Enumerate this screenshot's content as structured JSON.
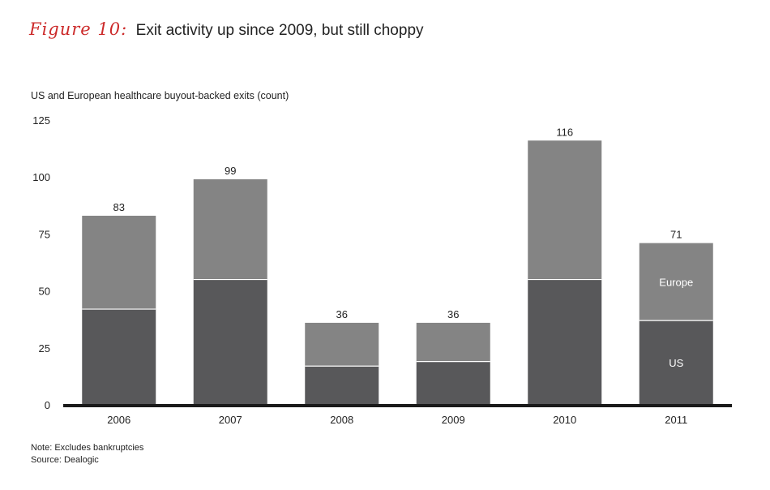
{
  "figure": {
    "label": "Figure 10:",
    "title": "Exit activity up since 2009, but still choppy",
    "label_color": "#cc2a2a"
  },
  "chart_data": {
    "type": "bar",
    "stacked": true,
    "title": "Exit activity up since 2009, but still choppy",
    "ylabel": "US and European healthcare buyout-backed exits (count)",
    "xlabel": "",
    "categories": [
      "2006",
      "2007",
      "2008",
      "2009",
      "2010",
      "2011"
    ],
    "series": [
      {
        "name": "US",
        "values": [
          42,
          55,
          17,
          19,
          55,
          37
        ],
        "color": "#58585a"
      },
      {
        "name": "Europe",
        "values": [
          41,
          44,
          19,
          17,
          61,
          34
        ],
        "color": "#848484"
      }
    ],
    "totals": [
      "83",
      "99",
      "36",
      "36",
      "116",
      "71"
    ],
    "ylim": [
      0,
      125
    ],
    "yticks": [
      "0",
      "25",
      "50",
      "75",
      "100",
      "125"
    ],
    "legend": "inline on last bar",
    "grid": false
  },
  "notes": {
    "note": "Note: Excludes bankruptcies",
    "source": "Source: Dealogic"
  }
}
